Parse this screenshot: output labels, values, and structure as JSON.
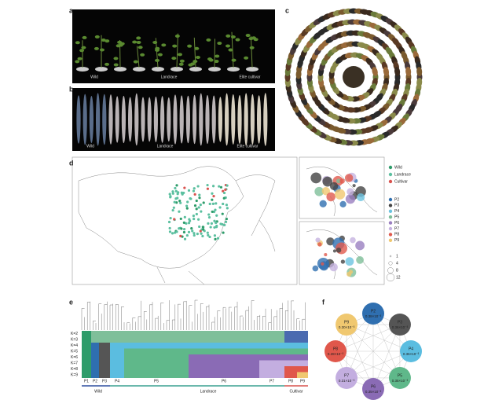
{
  "panels": {
    "a": "a",
    "b": "b",
    "c": "c",
    "d": "d",
    "e": "e",
    "f": "f"
  },
  "panel_a": {
    "labels": [
      "Wild",
      "Landrace",
      "Elite cultivar"
    ]
  },
  "panel_b": {
    "labels": [
      "Wild",
      "Landrace",
      "Elite cultivar"
    ]
  },
  "panel_d": {
    "groups": [
      {
        "label": "Wild",
        "color": "#2e9c6a"
      },
      {
        "label": "Landrace",
        "color": "#5cc0a0"
      },
      {
        "label": "Cultivar",
        "color": "#d9534f"
      }
    ],
    "populations": [
      {
        "label": "P2",
        "color": "#2f6fb0"
      },
      {
        "label": "P3",
        "color": "#444444"
      },
      {
        "label": "P4",
        "color": "#6cc3e0"
      },
      {
        "label": "P5",
        "color": "#7fbf9a"
      },
      {
        "label": "P6",
        "color": "#9a7fc0"
      },
      {
        "label": "P7",
        "color": "#c6b3e0"
      },
      {
        "label": "P8",
        "color": "#e05a4e"
      },
      {
        "label": "P9",
        "color": "#f0c870"
      }
    ],
    "sizes": [
      "1",
      "4",
      "8",
      "12"
    ]
  },
  "panel_e": {
    "k_labels": [
      "K=2",
      "K=3",
      "K=4",
      "K=5",
      "K=6",
      "K=7",
      "K=8",
      "K=9"
    ],
    "populations": [
      "P1",
      "P2",
      "P3",
      "P4",
      "P5",
      "P6",
      "P7",
      "P8",
      "P9"
    ],
    "groups": [
      "Wild",
      "Landrace",
      "Cultivar"
    ]
  },
  "panel_f": {
    "nodes": [
      {
        "label": "P2",
        "value": "0.38×10⁻³",
        "color": "#2f6fb0"
      },
      {
        "label": "P3",
        "value": "0.36×10⁻³",
        "color": "#555555"
      },
      {
        "label": "P4",
        "value": "0.36×10⁻³",
        "color": "#5bbde0"
      },
      {
        "label": "P5",
        "value": "0.35×10⁻³",
        "color": "#5fb88a"
      },
      {
        "label": "P6",
        "value": "0.35×10⁻³",
        "color": "#8a6bb5"
      },
      {
        "label": "P7",
        "value": "0.31×10⁻³",
        "color": "#c3aee0"
      },
      {
        "label": "P8",
        "value": "0.28×10⁻³",
        "color": "#e0574b"
      },
      {
        "label": "P9",
        "value": "0.30×10⁻³",
        "color": "#f0c870"
      }
    ]
  }
}
